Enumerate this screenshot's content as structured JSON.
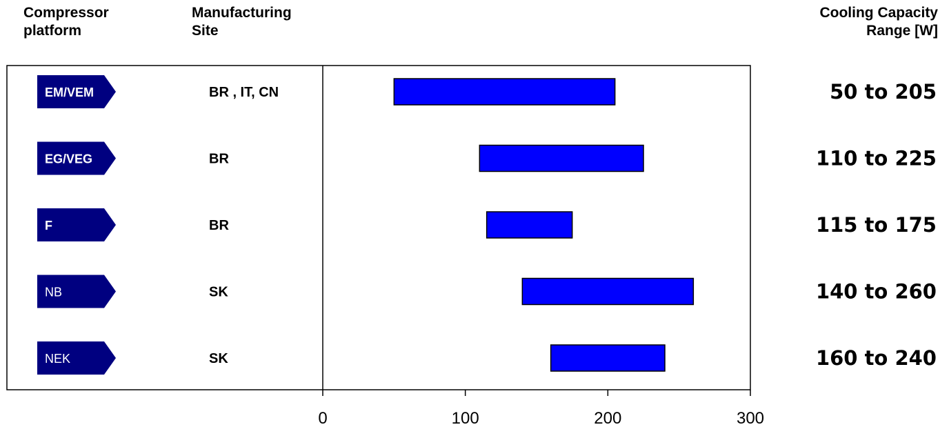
{
  "headers": {
    "platform": [
      "Compressor",
      "platform"
    ],
    "site": [
      "Manufacturing",
      "Site"
    ],
    "range": [
      "Cooling Capacity",
      "Range [W]"
    ]
  },
  "colors": {
    "bar_fill": "#0000ff",
    "tag_fill": "#000080"
  },
  "chart_data": {
    "type": "bar",
    "orientation": "horizontal-range",
    "xlim": [
      0,
      300
    ],
    "xticks": [
      0,
      100,
      200,
      300
    ],
    "grid": false,
    "rows": [
      {
        "platform": "EM/VEM",
        "platform_bold": true,
        "site": "BR , IT, CN",
        "start": 50,
        "end": 205,
        "range_label": "50 to 205"
      },
      {
        "platform": "EG/VEG",
        "platform_bold": true,
        "site": "BR",
        "start": 110,
        "end": 225,
        "range_label": "110 to 225"
      },
      {
        "platform": "F",
        "platform_bold": true,
        "site": "BR",
        "start": 115,
        "end": 175,
        "range_label": "115 to 175"
      },
      {
        "platform": "NB",
        "platform_bold": false,
        "site": "SK",
        "start": 140,
        "end": 260,
        "range_label": "140 to 260"
      },
      {
        "platform": "NEK",
        "platform_bold": false,
        "site": "SK",
        "start": 160,
        "end": 240,
        "range_label": "160 to 240"
      }
    ]
  }
}
